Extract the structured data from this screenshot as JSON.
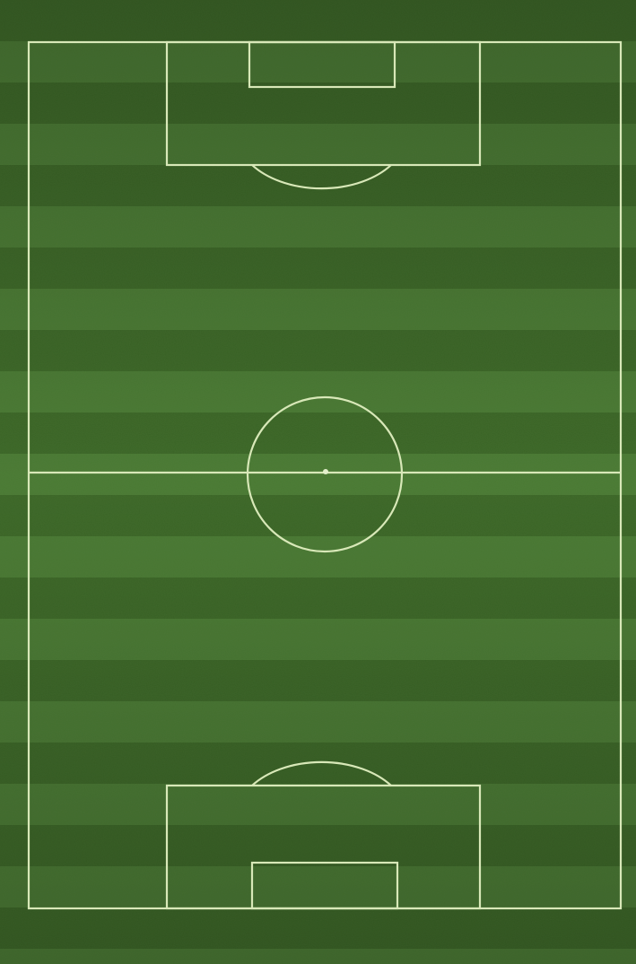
{
  "scene": {
    "subject": "football-pitch",
    "orientation": "vertical",
    "colors": {
      "grass_light": "#4a7a33",
      "grass_dark": "#3b6626",
      "line": "#d8e8b8",
      "noise": "#2f5a1f"
    }
  }
}
